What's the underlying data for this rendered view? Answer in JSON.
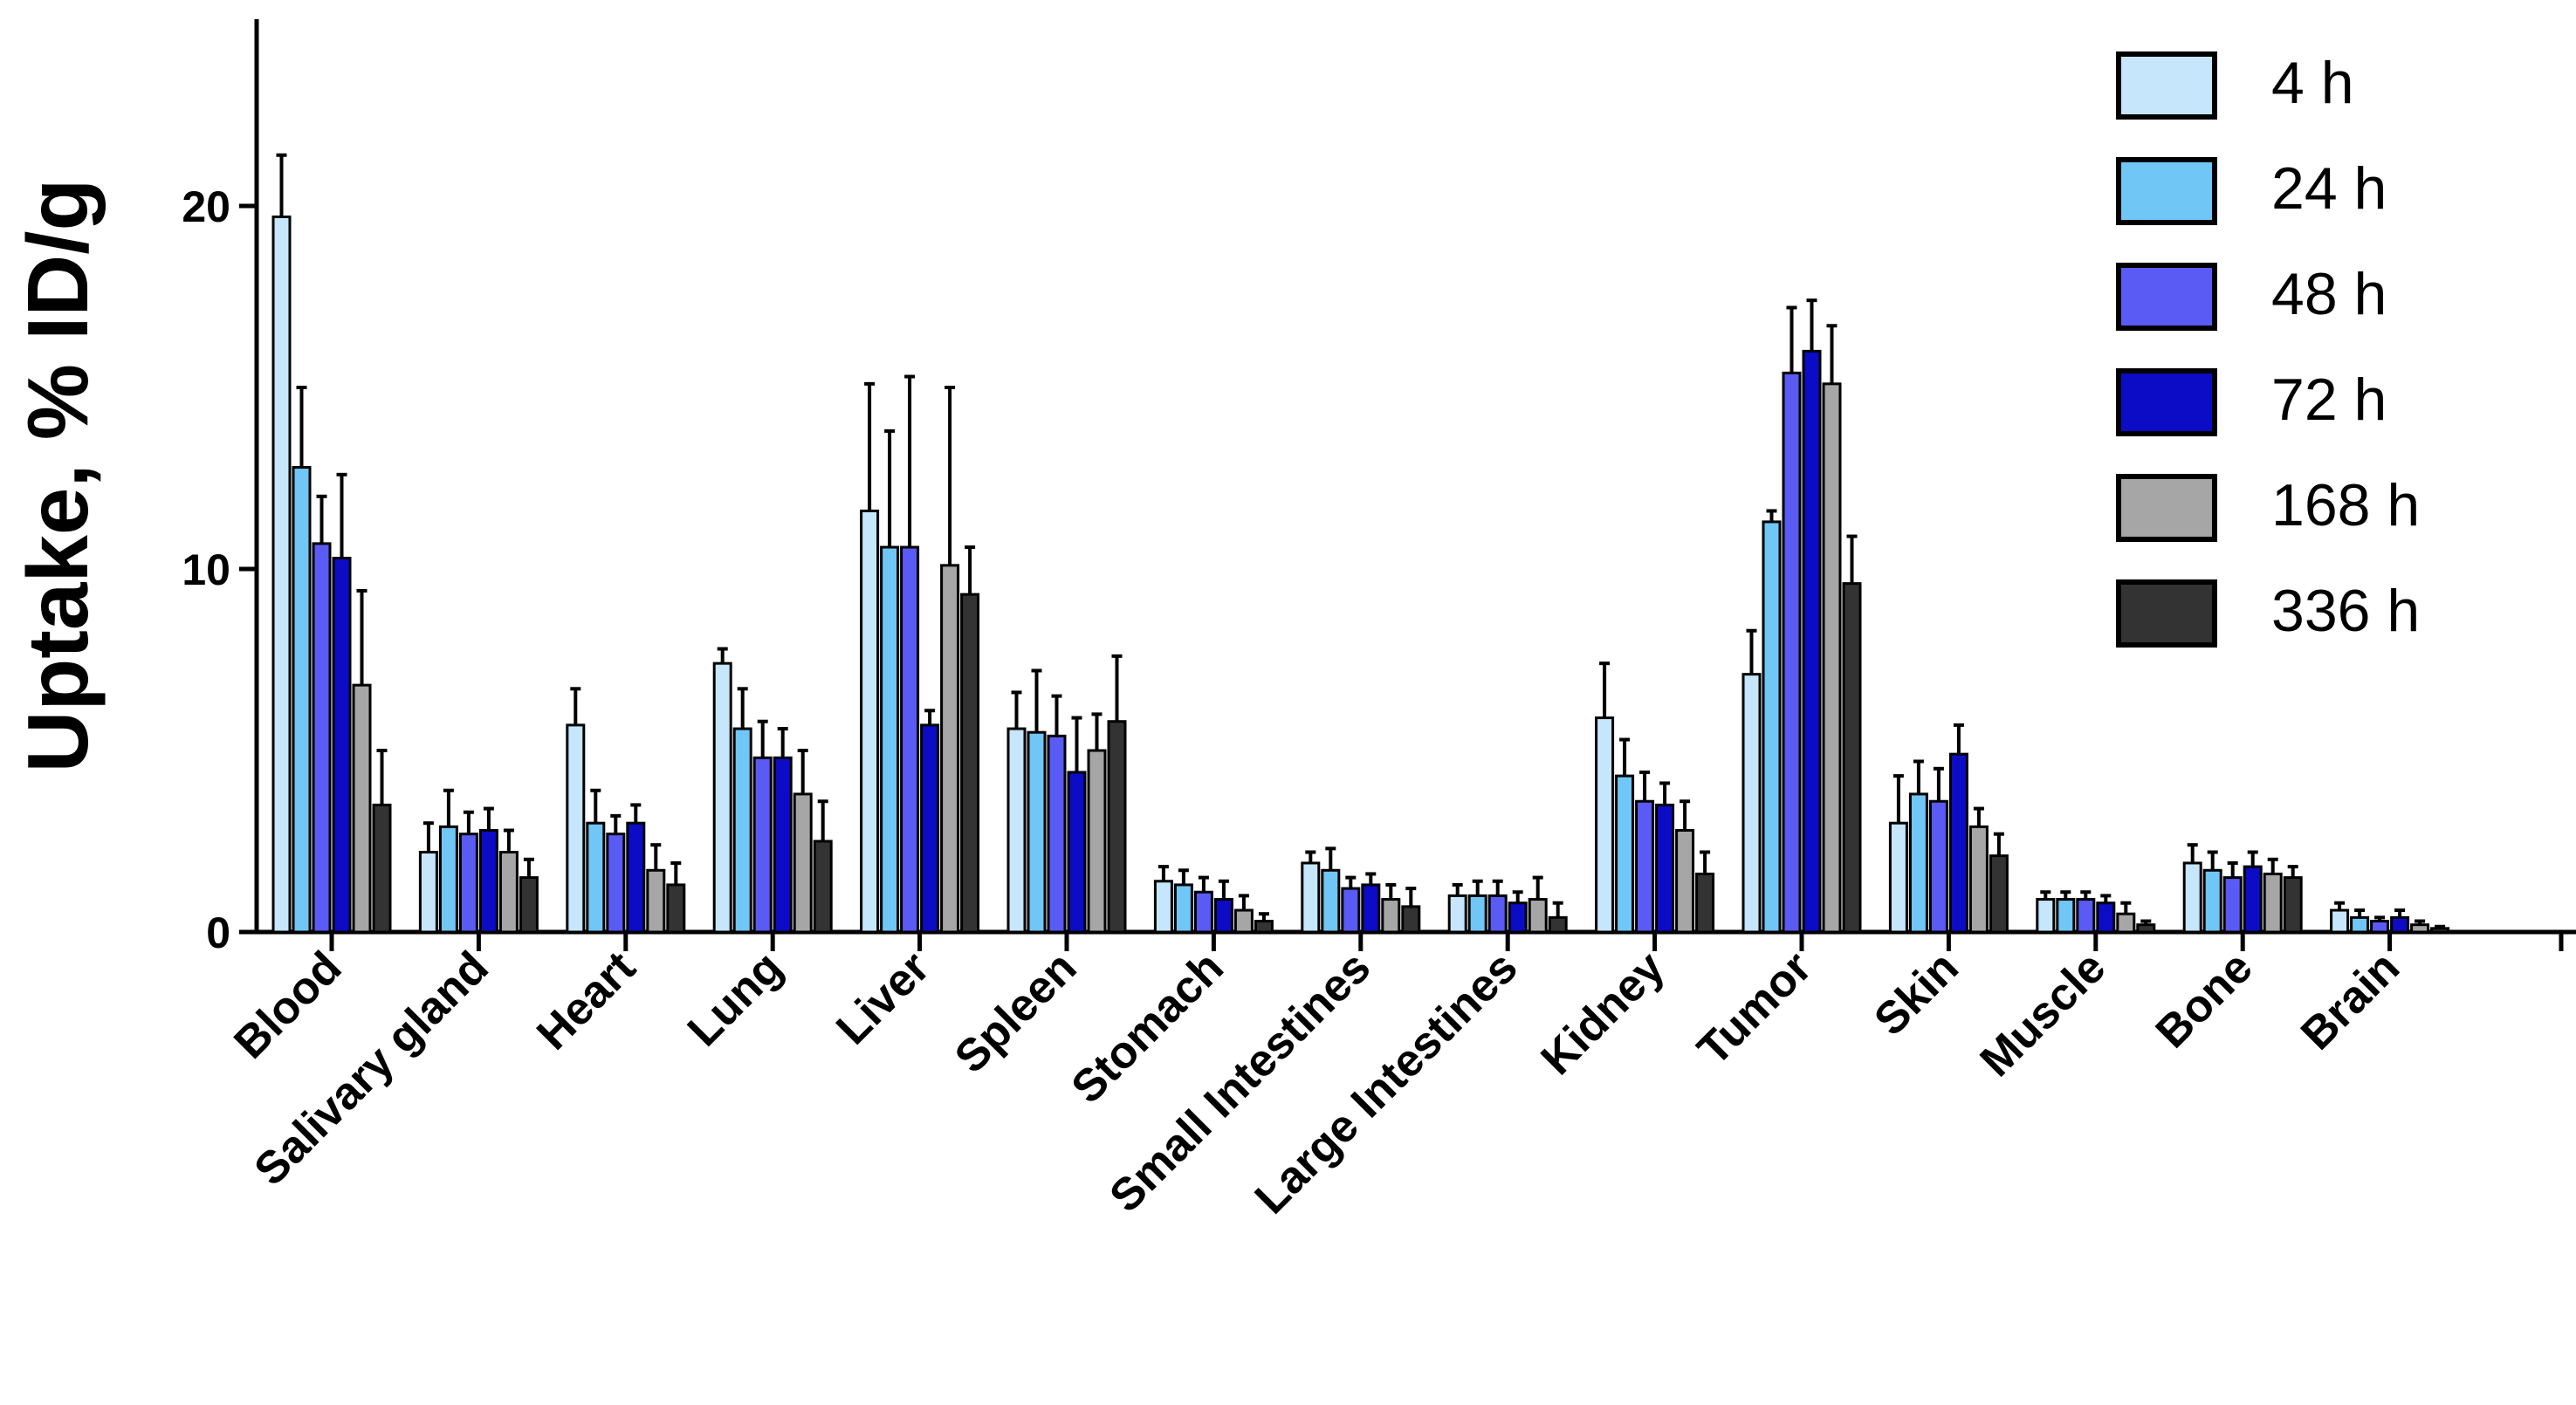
{
  "chart_data": {
    "type": "bar",
    "ylabel": "Uptake, % ID/g",
    "xlabel": "",
    "ylim": [
      0,
      25
    ],
    "yticks": [
      0,
      10,
      20
    ],
    "grid": false,
    "legend_position": "top-right",
    "categories": [
      "Blood",
      "Salivary gland",
      "Heart",
      "Lung",
      "Liver",
      "Spleen",
      "Stomach",
      "Small Intestines",
      "Large Intestines",
      "Kidney",
      "Tumor",
      "Skin",
      "Muscle",
      "Bone",
      "Brain"
    ],
    "series": [
      {
        "name": "4 h",
        "color": "#c6e6fb",
        "values": [
          19.7,
          2.2,
          5.7,
          7.4,
          11.6,
          5.6,
          1.4,
          1.9,
          1.0,
          5.9,
          7.1,
          3.0,
          0.9,
          1.9,
          0.6
        ],
        "errors": [
          1.7,
          0.8,
          1.0,
          0.4,
          3.5,
          1.0,
          0.4,
          0.3,
          0.3,
          1.5,
          1.2,
          1.3,
          0.2,
          0.5,
          0.2
        ]
      },
      {
        "name": "24 h",
        "color": "#70c6f4",
        "values": [
          12.8,
          2.9,
          3.0,
          5.6,
          10.6,
          5.5,
          1.3,
          1.7,
          1.0,
          4.3,
          11.3,
          3.8,
          0.9,
          1.7,
          0.4
        ],
        "errors": [
          2.2,
          1.0,
          0.9,
          1.1,
          3.2,
          1.7,
          0.4,
          0.6,
          0.4,
          1.0,
          0.3,
          0.9,
          0.2,
          0.5,
          0.2
        ]
      },
      {
        "name": "48 h",
        "color": "#5a5af5",
        "values": [
          10.7,
          2.7,
          2.7,
          4.8,
          10.6,
          5.4,
          1.1,
          1.2,
          1.0,
          3.6,
          15.4,
          3.6,
          0.9,
          1.5,
          0.3
        ],
        "errors": [
          1.3,
          0.6,
          0.5,
          1.0,
          4.7,
          1.1,
          0.4,
          0.3,
          0.4,
          0.8,
          1.8,
          0.9,
          0.2,
          0.4,
          0.1
        ]
      },
      {
        "name": "72 h",
        "color": "#0c0cc6",
        "values": [
          10.3,
          2.8,
          3.0,
          4.8,
          5.7,
          4.4,
          0.9,
          1.3,
          0.8,
          3.5,
          16.0,
          4.9,
          0.8,
          1.8,
          0.4
        ],
        "errors": [
          2.3,
          0.6,
          0.5,
          0.8,
          0.4,
          1.5,
          0.5,
          0.3,
          0.3,
          0.6,
          1.4,
          0.8,
          0.2,
          0.4,
          0.2
        ]
      },
      {
        "name": "168 h",
        "color": "#a6a6a6",
        "values": [
          6.8,
          2.2,
          1.7,
          3.8,
          10.1,
          5.0,
          0.6,
          0.9,
          0.9,
          2.8,
          15.1,
          2.9,
          0.5,
          1.6,
          0.2
        ],
        "errors": [
          2.6,
          0.6,
          0.7,
          1.2,
          4.9,
          1.0,
          0.4,
          0.4,
          0.6,
          0.8,
          1.6,
          0.5,
          0.3,
          0.4,
          0.1
        ]
      },
      {
        "name": "336 h",
        "color": "#333333",
        "values": [
          3.5,
          1.5,
          1.3,
          2.5,
          9.3,
          5.8,
          0.3,
          0.7,
          0.4,
          1.6,
          9.6,
          2.1,
          0.2,
          1.5,
          0.1
        ],
        "errors": [
          1.5,
          0.5,
          0.6,
          1.1,
          1.3,
          1.8,
          0.2,
          0.5,
          0.4,
          0.6,
          1.3,
          0.6,
          0.1,
          0.3,
          0.05
        ]
      }
    ]
  }
}
